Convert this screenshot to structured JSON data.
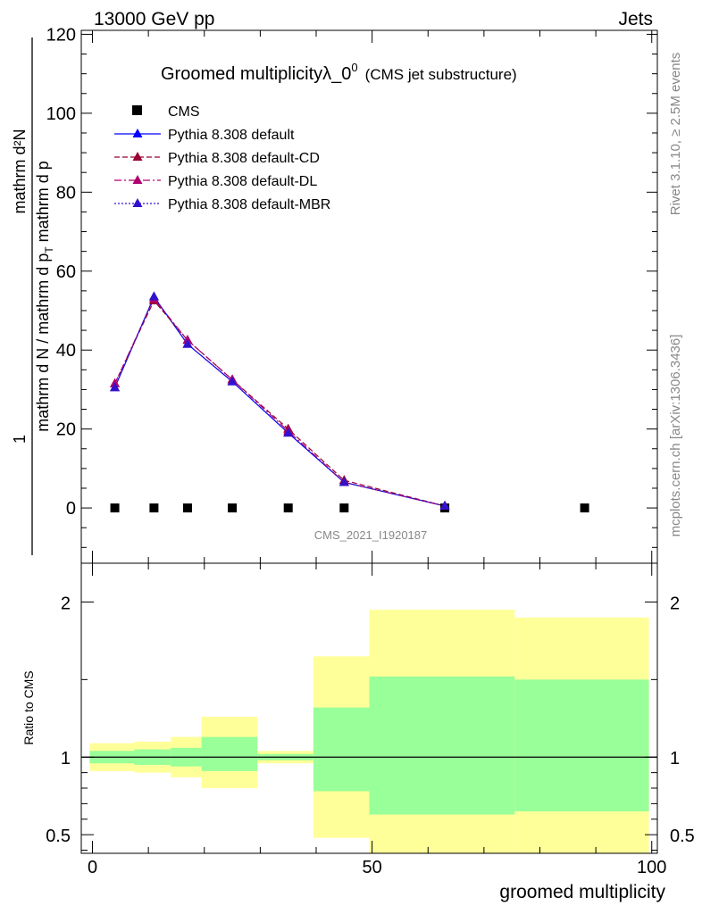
{
  "header": {
    "left": "13000 GeV pp",
    "right": "Jets"
  },
  "top_panel": {
    "title_main": "Groomed multiplicityλ_0",
    "title_sup": "0",
    "title_note": "(CMS jet substructure)",
    "ylabel_numerator": "mathrm d²N",
    "ylabel_frac_num": "1",
    "ylabel_frac_den": "mathrm d N / mathrm d p",
    "ylabel_sub": "T",
    "ylabel_rest": "mathrm d p",
    "watermark": "CMS_2021_I1920187"
  },
  "side_labels": {
    "rivet": "Rivet 3.1.10, ≥ 2.5M events",
    "mcplots": "mcplots.cern.ch [arXiv:1306.3436]"
  },
  "legend": [
    {
      "name": "CMS",
      "color": "#000000",
      "style": "square"
    },
    {
      "name": "Pythia 8.308 default",
      "color": "#0000ff",
      "style": "solid"
    },
    {
      "name": "Pythia 8.308 default-CD",
      "color": "#990033",
      "style": "dashed"
    },
    {
      "name": "Pythia 8.308 default-DL",
      "color": "#b0006f",
      "style": "dashdot"
    },
    {
      "name": "Pythia 8.308 default-MBR",
      "color": "#3311cc",
      "style": "dotted"
    }
  ],
  "bottom_panel": {
    "ylabel": "Ratio to CMS",
    "xlabel": "groomed multiplicity"
  },
  "chart_data": [
    {
      "type": "line",
      "xlim": [
        -2,
        101
      ],
      "ylim": [
        -14,
        121
      ],
      "yticks": [
        0,
        20,
        40,
        60,
        80,
        100,
        120
      ],
      "ytick_labels": [
        "0",
        "20",
        "40",
        "60",
        "80",
        "100",
        "120"
      ],
      "series": [
        {
          "name": "CMS",
          "x": [
            4,
            11,
            17,
            25,
            35,
            45,
            63,
            88
          ],
          "y": [
            0,
            0,
            0,
            0,
            0,
            0,
            0,
            0
          ]
        },
        {
          "name": "Pythia 8.308 default",
          "x": [
            4,
            11,
            17,
            25,
            35,
            45,
            63
          ],
          "y": [
            30.5,
            53.5,
            41.5,
            32,
            19,
            6.5,
            0.5
          ]
        },
        {
          "name": "Pythia 8.308 default-CD",
          "x": [
            4,
            11,
            17,
            25,
            35,
            45,
            63
          ],
          "y": [
            31.5,
            52.5,
            42.5,
            32.5,
            20,
            7,
            0.5
          ]
        },
        {
          "name": "Pythia 8.308 default-DL",
          "x": [
            4,
            11,
            17,
            25,
            35,
            45,
            63
          ],
          "y": [
            31.5,
            53,
            42.5,
            32.5,
            19.5,
            6.5,
            0.5
          ]
        },
        {
          "name": "Pythia 8.308 default-MBR",
          "x": [
            4,
            11,
            17,
            25,
            35,
            45,
            63
          ],
          "y": [
            30.5,
            53.5,
            41.5,
            32,
            19,
            6.5,
            0.5
          ]
        }
      ]
    },
    {
      "type": "area",
      "xlim": [
        -2,
        101
      ],
      "ylim": [
        0.38,
        2.25
      ],
      "yticks": [
        0.5,
        1,
        2
      ],
      "ytick_labels": [
        "0.5",
        "1",
        "2"
      ],
      "xticks": [
        0,
        50,
        100
      ],
      "xtick_labels": [
        "0",
        "50",
        "100"
      ],
      "reference_line": 1,
      "bands": [
        {
          "x0": -0.5,
          "x1": 7.5,
          "yellow": [
            0.91,
            1.09
          ],
          "green": [
            0.96,
            1.04
          ]
        },
        {
          "x0": 7.5,
          "x1": 14,
          "yellow": [
            0.9,
            1.1
          ],
          "green": [
            0.95,
            1.05
          ]
        },
        {
          "x0": 14,
          "x1": 19.5,
          "yellow": [
            0.87,
            1.13
          ],
          "green": [
            0.94,
            1.06
          ]
        },
        {
          "x0": 19.5,
          "x1": 29.5,
          "yellow": [
            0.8,
            1.26
          ],
          "green": [
            0.91,
            1.13
          ]
        },
        {
          "x0": 29.5,
          "x1": 39.5,
          "yellow": [
            0.96,
            1.04
          ],
          "green": [
            0.98,
            1.02
          ]
        },
        {
          "x0": 39.5,
          "x1": 49.5,
          "yellow": [
            0.48,
            1.65
          ],
          "green": [
            0.78,
            1.32
          ]
        },
        {
          "x0": 49.5,
          "x1": 75.5,
          "yellow": [
            0.36,
            1.95
          ],
          "green": [
            0.63,
            1.52
          ]
        },
        {
          "x0": 75.5,
          "x1": 99.5,
          "yellow": [
            0.36,
            1.9
          ],
          "green": [
            0.65,
            1.5
          ]
        }
      ]
    }
  ]
}
